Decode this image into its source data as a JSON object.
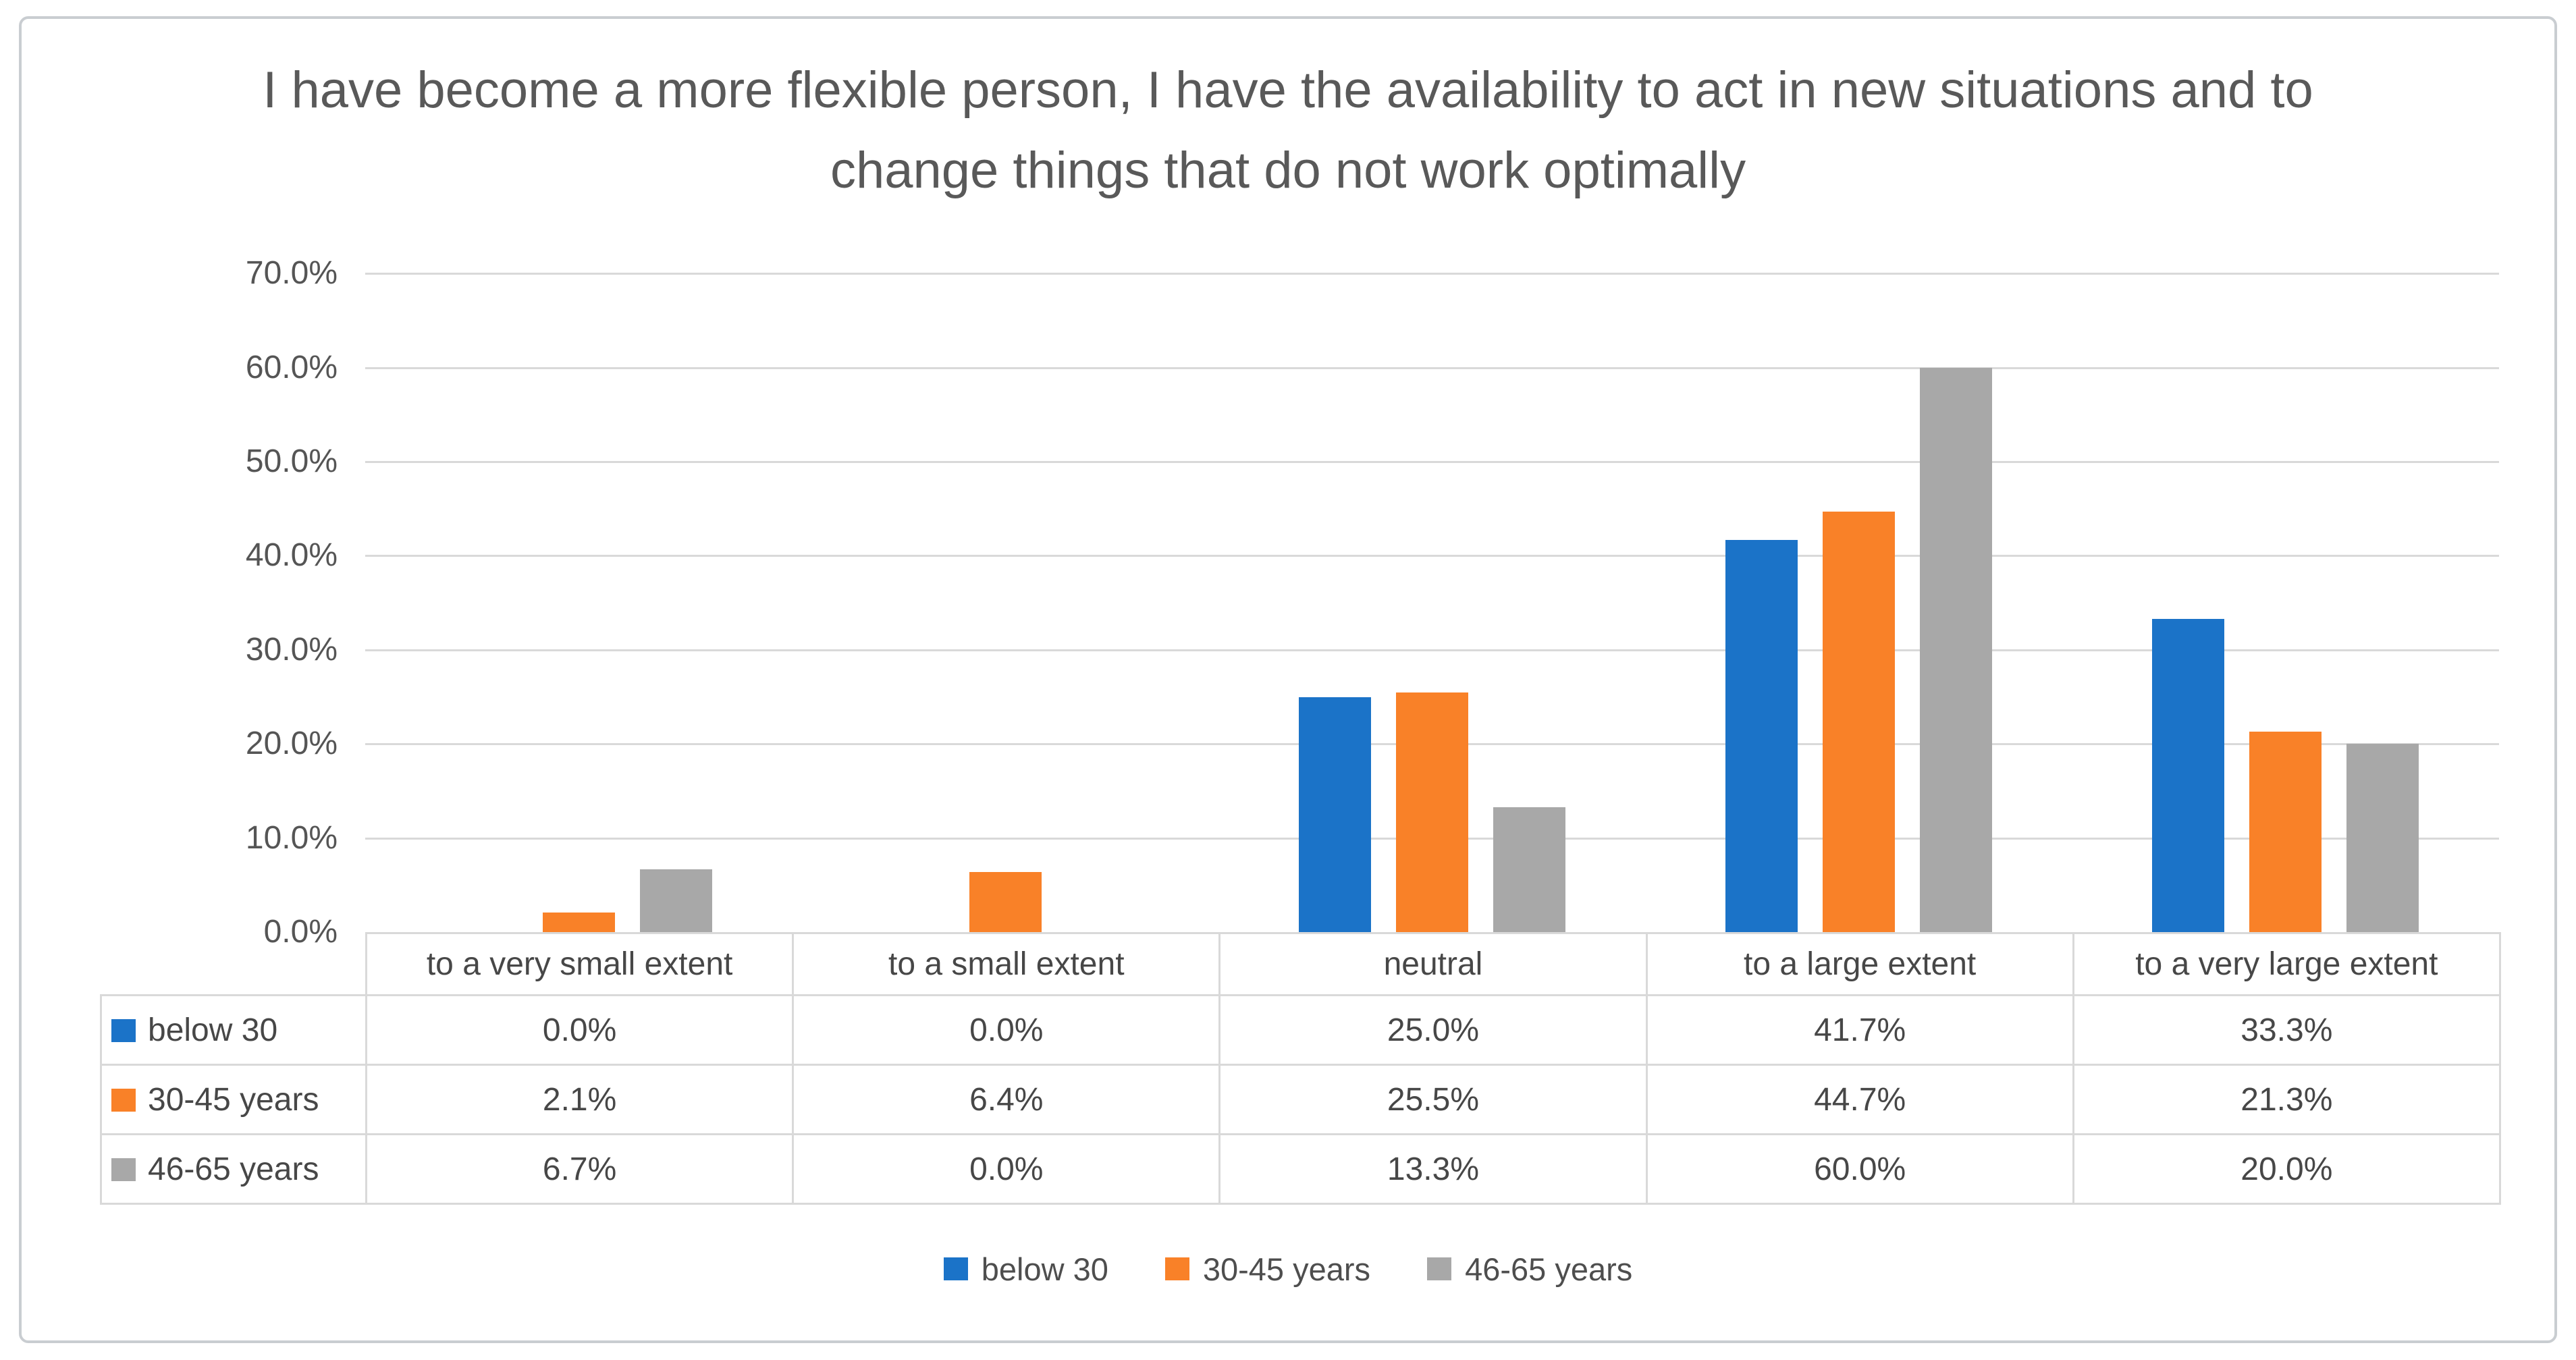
{
  "chart_data": {
    "type": "bar",
    "title": "I have become a more flexible person, I have the availability to act in new situations and to change things that do not work optimally",
    "categories": [
      "to a very small extent",
      "to a small extent",
      "neutral",
      "to a large extent",
      "to a very large extent"
    ],
    "series": [
      {
        "name": "below 30",
        "color": "#1b73c8",
        "values": [
          0.0,
          0.0,
          25.0,
          41.7,
          33.3
        ],
        "formatted": [
          "0.0%",
          "0.0%",
          "25.0%",
          "41.7%",
          "33.3%"
        ]
      },
      {
        "name": "30-45 years",
        "color": "#f98128",
        "values": [
          2.1,
          6.4,
          25.5,
          44.7,
          21.3
        ],
        "formatted": [
          "2.1%",
          "6.4%",
          "25.5%",
          "44.7%",
          "21.3%"
        ]
      },
      {
        "name": "46-65 years",
        "color": "#a8a8a8",
        "values": [
          6.7,
          0.0,
          13.3,
          60.0,
          20.0
        ],
        "formatted": [
          "6.7%",
          "0.0%",
          "13.3%",
          "60.0%",
          "20.0%"
        ]
      }
    ],
    "y_axis": {
      "min": 0,
      "max": 70,
      "step": 10,
      "tick_labels_top_to_bottom": [
        "70.0%",
        "60.0%",
        "50.0%",
        "40.0%",
        "30.0%",
        "20.0%",
        "10.0%",
        "0.0%"
      ]
    },
    "grid": true,
    "legend_position": "bottom",
    "legend_labels": [
      "below 30",
      "30-45 years",
      "46-65 years"
    ],
    "data_table_shown": true,
    "colors": {
      "gridline": "#d9d9d9",
      "table_border": "#d9d9d9",
      "title_text": "#595959",
      "body_text": "#474747",
      "card_border": "#c9cdd1"
    }
  }
}
